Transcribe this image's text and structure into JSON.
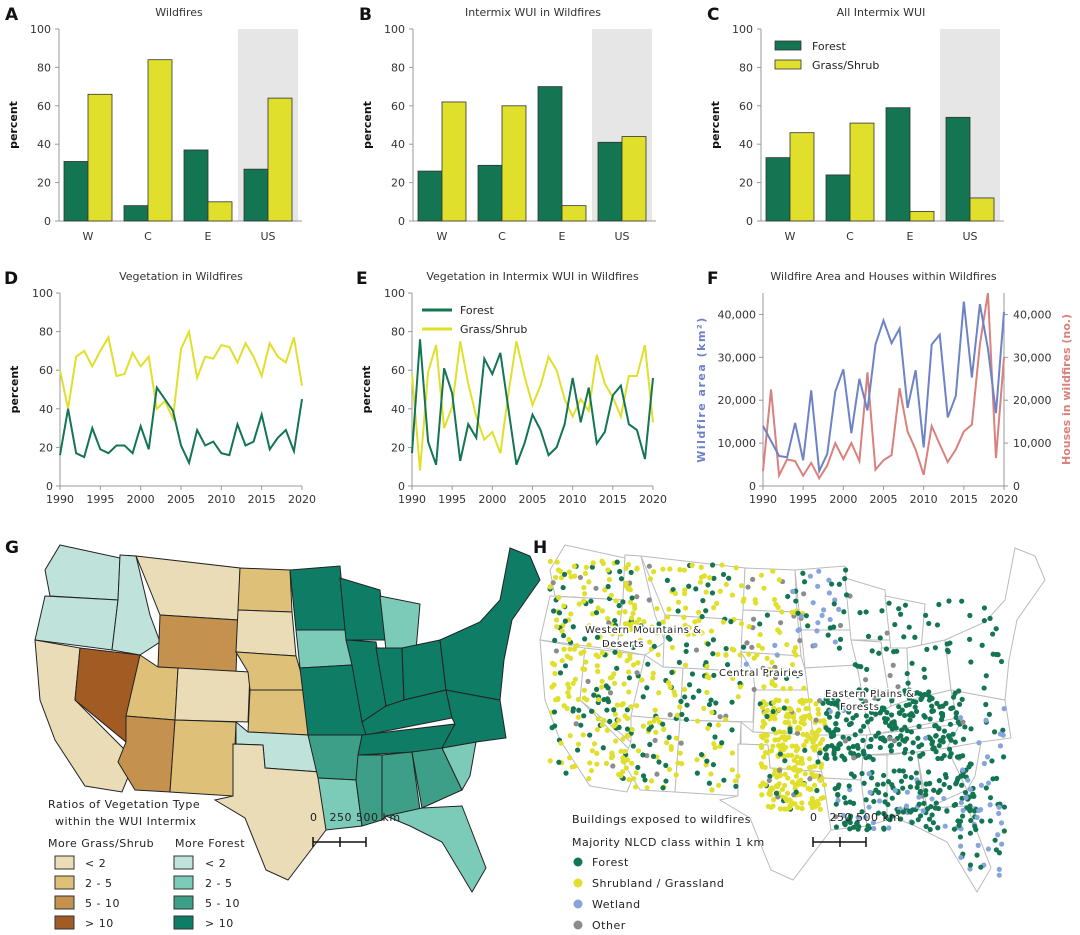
{
  "colors": {
    "forest": "#137552",
    "grass": "#e0df2c",
    "wetland": "#86a5dc",
    "other": "#8c8c8c",
    "area": "#6d83c8",
    "houses": "#d9817d",
    "shade": "#e6e6e6",
    "g1": "#e9dcb6",
    "g2": "#dfc079",
    "g3": "#c4914e",
    "g4": "#a25c23",
    "f1": "#bfe2da",
    "f2": "#7ccab8",
    "f3": "#3e9f88",
    "f4": "#0f7c66"
  },
  "chart_data": [
    {
      "id": "A",
      "type": "bar",
      "title": "Wildfires",
      "ylabel": "percent",
      "ylim": [
        0,
        100
      ],
      "yticks": [
        0,
        20,
        40,
        60,
        80,
        100
      ],
      "categories": [
        "W",
        "C",
        "E",
        "US"
      ],
      "shaded_category": "US",
      "series": [
        {
          "name": "Forest",
          "values": [
            31,
            8,
            37,
            27
          ]
        },
        {
          "name": "Grass/Shrub",
          "values": [
            66,
            84,
            10,
            64
          ]
        }
      ]
    },
    {
      "id": "B",
      "type": "bar",
      "title": "Intermix WUI in Wildfires",
      "ylabel": "percent",
      "ylim": [
        0,
        100
      ],
      "yticks": [
        0,
        20,
        40,
        60,
        80,
        100
      ],
      "categories": [
        "W",
        "C",
        "E",
        "US"
      ],
      "shaded_category": "US",
      "series": [
        {
          "name": "Forest",
          "values": [
            26,
            29,
            70,
            41
          ]
        },
        {
          "name": "Grass/Shrub",
          "values": [
            62,
            60,
            8,
            44
          ]
        }
      ]
    },
    {
      "id": "C",
      "type": "bar",
      "title": "All Intermix WUI",
      "ylabel": "percent",
      "ylim": [
        0,
        100
      ],
      "yticks": [
        0,
        20,
        40,
        60,
        80,
        100
      ],
      "categories": [
        "W",
        "C",
        "E",
        "US"
      ],
      "shaded_category": "US",
      "legend": [
        "Forest",
        "Grass/Shrub"
      ],
      "legend_position": "top-left",
      "series": [
        {
          "name": "Forest",
          "values": [
            33,
            24,
            59,
            54
          ]
        },
        {
          "name": "Grass/Shrub",
          "values": [
            46,
            51,
            5,
            12
          ]
        }
      ]
    },
    {
      "id": "D",
      "type": "line",
      "title": "Vegetation in Wildfires",
      "ylabel": "percent",
      "ylim": [
        0,
        100
      ],
      "yticks": [
        0,
        20,
        40,
        60,
        80,
        100
      ],
      "xlim": [
        1990,
        2020
      ],
      "xticks": [
        1990,
        1995,
        2000,
        2005,
        2010,
        2015,
        2020
      ],
      "series": [
        {
          "name": "Forest",
          "values": [
            16,
            40,
            17,
            15,
            30,
            19,
            17,
            21,
            21,
            17,
            31,
            19,
            51,
            45,
            39,
            21,
            12,
            29,
            21,
            23,
            17,
            16,
            32,
            21,
            23,
            37,
            19,
            25,
            29,
            18,
            45
          ]
        },
        {
          "name": "Grass/Shrub",
          "values": [
            60,
            40,
            67,
            70,
            62,
            70,
            77,
            57,
            58,
            69,
            62,
            67,
            40,
            44,
            35,
            71,
            80,
            56,
            67,
            66,
            73,
            72,
            64,
            74,
            67,
            57,
            74,
            67,
            64,
            77,
            52
          ]
        }
      ]
    },
    {
      "id": "E",
      "type": "line",
      "title": "Vegetation in Intermix WUI in Wildfires",
      "ylabel": "percent",
      "ylim": [
        0,
        100
      ],
      "yticks": [
        0,
        20,
        40,
        60,
        80,
        100
      ],
      "xlim": [
        1990,
        2020
      ],
      "xticks": [
        1990,
        1995,
        2000,
        2005,
        2010,
        2015,
        2020
      ],
      "legend": [
        "Forest",
        "Grass/Shrub"
      ],
      "legend_position": "top-left",
      "series": [
        {
          "name": "Forest",
          "values": [
            17,
            76,
            23,
            11,
            61,
            48,
            13,
            32,
            25,
            66,
            58,
            69,
            40,
            11,
            22,
            37,
            29,
            16,
            20,
            32,
            56,
            33,
            51,
            22,
            28,
            47,
            52,
            32,
            29,
            14,
            56
          ]
        },
        {
          "name": "Grass/Shrub",
          "values": [
            58,
            8,
            59,
            73,
            30,
            41,
            75,
            53,
            36,
            24,
            28,
            17,
            48,
            75,
            57,
            42,
            52,
            67,
            60,
            45,
            36,
            45,
            39,
            68,
            53,
            46,
            36,
            57,
            57,
            73,
            33
          ]
        }
      ]
    },
    {
      "id": "F",
      "type": "line",
      "title": "Wildfire Area and Houses within Wildfires",
      "ylabel": "Wildfire area (km²)",
      "ylabel_right": "Houses in wildfires (no.)",
      "ylim": [
        0,
        45000
      ],
      "yticks": [
        0,
        10000,
        20000,
        30000,
        40000
      ],
      "ytick_labels": [
        "0",
        "10,000",
        "20,000",
        "30,000",
        "40,000"
      ],
      "xlim": [
        1990,
        2020
      ],
      "xticks": [
        1990,
        1995,
        2000,
        2005,
        2010,
        2015,
        2020
      ],
      "series": [
        {
          "name": "Wildfire area",
          "axis": "left",
          "values": [
            14000,
            10500,
            7000,
            6700,
            14700,
            6000,
            22300,
            3500,
            7500,
            22000,
            27200,
            12300,
            25000,
            17600,
            33000,
            38600,
            33300,
            36700,
            18200,
            27000,
            9000,
            33000,
            35300,
            16000,
            21000,
            43000,
            25300,
            42400,
            32000,
            17000,
            40600
          ]
        },
        {
          "name": "Houses in wildfires",
          "axis": "right",
          "values": [
            3500,
            22500,
            2500,
            6200,
            5800,
            2400,
            5400,
            1800,
            4800,
            10000,
            6300,
            10000,
            5800,
            26500,
            3800,
            6000,
            7200,
            22800,
            12700,
            8500,
            2600,
            14000,
            9700,
            5600,
            8500,
            12700,
            14300,
            33000,
            45000,
            6500,
            30000
          ]
        }
      ]
    }
  ],
  "mapG": {
    "label": "G",
    "legend_title_1": "Ratios of Vegetation Type",
    "legend_title_2": "within the WUI Intermix",
    "col1_header": "More Grass/Shrub",
    "col2_header": "More Forest",
    "classes": [
      "< 2",
      "2 - 5",
      "5 - 10",
      "> 10"
    ],
    "scale": "0   250 500 km"
  },
  "mapH": {
    "label": "H",
    "legend_title_1": "Buildings exposed to wildfires",
    "legend_title_2": "Majority NLCD class within 1 km",
    "classes": [
      "Forest",
      "Shrubland / Grassland",
      "Wetland",
      "Other"
    ],
    "regions": [
      "Western Mountains &",
      "Deserts",
      "Central Prairies",
      "Eastern Plains &",
      "Forests"
    ],
    "scale": "0   250 500 km"
  }
}
